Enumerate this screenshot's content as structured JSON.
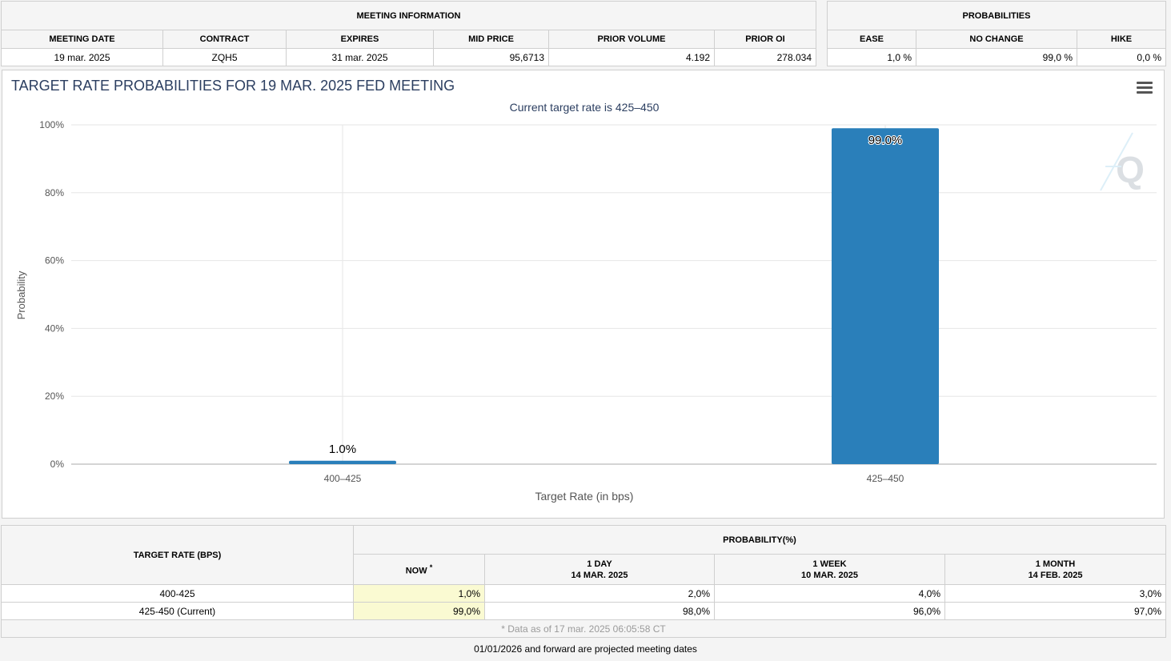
{
  "meeting_info": {
    "title": "MEETING INFORMATION",
    "columns": [
      "MEETING DATE",
      "CONTRACT",
      "EXPIRES",
      "MID PRICE",
      "PRIOR VOLUME",
      "PRIOR OI"
    ],
    "row": [
      "19 mar. 2025",
      "ZQH5",
      "31 mar. 2025",
      "95,6713",
      "4.192",
      "278.034"
    ]
  },
  "probabilities": {
    "title": "PROBABILITIES",
    "columns": [
      "EASE",
      "NO CHANGE",
      "HIKE"
    ],
    "row": [
      "1,0 %",
      "99,0 %",
      "0,0 %"
    ]
  },
  "chart": {
    "menu_icon": "hamburger-menu-icon",
    "watermark_icon": "q-logo-icon"
  },
  "chart_data": {
    "type": "bar",
    "title": "TARGET RATE PROBABILITIES FOR 19 MAR. 2025 FED MEETING",
    "subtitle": "Current target rate is 425–450",
    "categories": [
      "400–425",
      "425–450"
    ],
    "values": [
      1.0,
      99.0
    ],
    "data_labels": [
      "1.0%",
      "99.0%"
    ],
    "xlabel": "Target Rate (in bps)",
    "ylabel": "Probability",
    "ylim": [
      0,
      100
    ],
    "yticks": [
      "0%",
      "20%",
      "40%",
      "60%",
      "80%",
      "100%"
    ],
    "grid": true,
    "bar_color": "#2a7fba"
  },
  "rate_table": {
    "col1_header": "TARGET RATE (BPS)",
    "group_header": "PROBABILITY(%)",
    "now_label": "NOW",
    "now_mark": "*",
    "periods": [
      {
        "label": "1 DAY",
        "date": "14 MAR. 2025"
      },
      {
        "label": "1 WEEK",
        "date": "10 MAR. 2025"
      },
      {
        "label": "1 MONTH",
        "date": "14 FEB. 2025"
      }
    ],
    "rows": [
      {
        "rate": "400-425",
        "now": "1,0%",
        "day": "2,0%",
        "week": "4,0%",
        "month": "3,0%"
      },
      {
        "rate": "425-450 (Current)",
        "now": "99,0%",
        "day": "98,0%",
        "week": "96,0%",
        "month": "97,0%"
      }
    ],
    "note": "* Data as of 17 mar. 2025 06:05:58 CT"
  },
  "footer_note": "01/01/2026 and forward are projected meeting dates"
}
